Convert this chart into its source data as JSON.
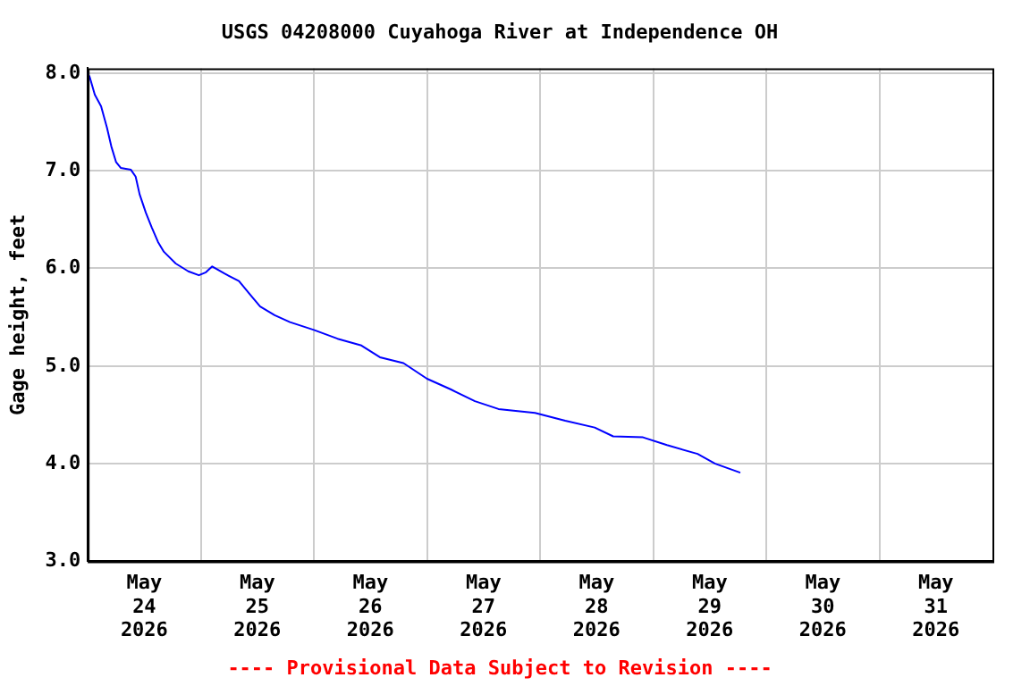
{
  "chart_data": {
    "type": "line",
    "title": "USGS 04208000 Cuyahoga River at Independence OH",
    "ylabel": "Gage height, feet",
    "annotations": [
      "---- Provisional Data Subject to Revision ----"
    ],
    "x": [
      "2026-05-24T00:00",
      "2026-05-24T00:25",
      "2026-05-24T01:30",
      "2026-05-24T02:50",
      "2026-05-24T04:05",
      "2026-05-24T05:00",
      "2026-05-24T06:00",
      "2026-05-24T07:00",
      "2026-05-24T09:10",
      "2026-05-24T10:10",
      "2026-05-24T11:00",
      "2026-05-24T12:20",
      "2026-05-24T13:35",
      "2026-05-24T14:55",
      "2026-05-24T16:10",
      "2026-05-24T18:40",
      "2026-05-24T21:20",
      "2026-05-24T23:35",
      "2026-05-25T01:05",
      "2026-05-25T02:25",
      "2026-05-25T04:55",
      "2026-05-25T08:05",
      "2026-05-25T10:40",
      "2026-05-25T12:35",
      "2026-05-25T15:40",
      "2026-05-25T18:55",
      "2026-05-26T00:00",
      "2026-05-26T05:00",
      "2026-05-26T10:05",
      "2026-05-26T14:00",
      "2026-05-26T19:00",
      "2026-05-27T00:00",
      "2026-05-27T05:05",
      "2026-05-27T10:10",
      "2026-05-27T15:10",
      "2026-05-27T22:55",
      "2026-05-28T05:20",
      "2026-05-28T11:35",
      "2026-05-28T15:30",
      "2026-05-28T21:50",
      "2026-05-29T02:55",
      "2026-05-29T09:25",
      "2026-05-29T13:10",
      "2026-05-29T18:20"
    ],
    "series": [
      {
        "color": "#0000ff",
        "values": [
          8.0,
          7.96,
          7.78,
          7.66,
          7.44,
          7.25,
          7.09,
          7.03,
          7.01,
          6.94,
          6.76,
          6.57,
          6.42,
          6.27,
          6.17,
          6.05,
          5.97,
          5.93,
          5.96,
          6.02,
          5.95,
          5.87,
          5.72,
          5.61,
          5.52,
          5.45,
          5.37,
          5.28,
          5.21,
          5.09,
          5.03,
          4.87,
          4.76,
          4.64,
          4.56,
          4.52,
          4.44,
          4.37,
          4.28,
          4.27,
          4.19,
          4.1,
          4.0,
          3.91
        ]
      }
    ],
    "xlim": [
      "2026-05-24T00:00",
      "2026-06-01T00:00"
    ],
    "xticks": [
      {
        "value": "2026-05-24T12:00",
        "label": "May\n24\n2026"
      },
      {
        "value": "2026-05-25T00:00",
        "label": null
      },
      {
        "value": "2026-05-25T12:00",
        "label": "May\n25\n2026"
      },
      {
        "value": "2026-05-26T00:00",
        "label": null
      },
      {
        "value": "2026-05-26T12:00",
        "label": "May\n26\n2026"
      },
      {
        "value": "2026-05-27T00:00",
        "label": null
      },
      {
        "value": "2026-05-27T12:00",
        "label": "May\n27\n2026"
      },
      {
        "value": "2026-05-28T00:00",
        "label": null
      },
      {
        "value": "2026-05-28T12:00",
        "label": "May\n28\n2026"
      },
      {
        "value": "2026-05-29T00:00",
        "label": null
      },
      {
        "value": "2026-05-29T12:00",
        "label": "May\n29\n2026"
      },
      {
        "value": "2026-05-30T00:00",
        "label": null
      },
      {
        "value": "2026-05-30T12:00",
        "label": "May\n30\n2026"
      },
      {
        "value": "2026-05-31T00:00",
        "label": null
      },
      {
        "value": "2026-05-31T12:00",
        "label": "May\n31\n2026"
      }
    ],
    "ylim": [
      3.0,
      8.05
    ],
    "yticks": [
      {
        "value": 3,
        "label": "3.0"
      },
      {
        "value": 4,
        "label": "4.0"
      },
      {
        "value": 5,
        "label": "5.0"
      },
      {
        "value": 6,
        "label": "6.0"
      },
      {
        "value": 7,
        "label": "7.0"
      },
      {
        "value": 8,
        "label": "8.0"
      }
    ],
    "grid": true,
    "legend": false,
    "marker": "none",
    "line_style": "solid"
  }
}
